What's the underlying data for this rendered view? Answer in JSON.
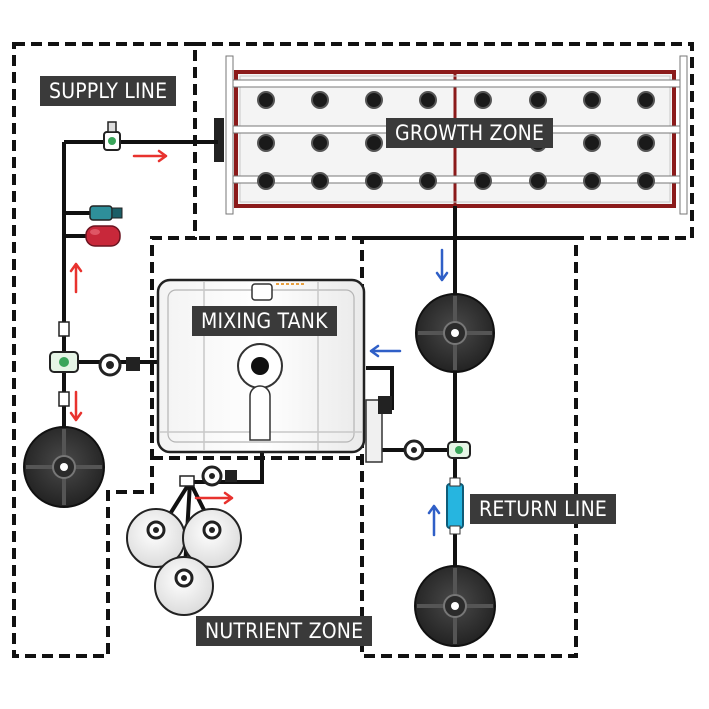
{
  "labels": {
    "supply_line": "SUPPLY LINE",
    "growth_zone": "GROWTH ZONE",
    "mixing_tank": "MIXING TANK",
    "return_line": "RETURN LINE",
    "nutrient_zone": "NUTRIENT ZONE"
  },
  "colors": {
    "pipe": "#111111",
    "zone_border": "#111111",
    "flow_supply": "#e8322e",
    "flow_return": "#2f5fc7",
    "tray_frame": "#8b1a1a",
    "label_bg": "#3a3a3a",
    "reservoir": "#2b2b2b",
    "pressure_tank": "#c8283a",
    "uv_filter": "#26b5e0"
  }
}
